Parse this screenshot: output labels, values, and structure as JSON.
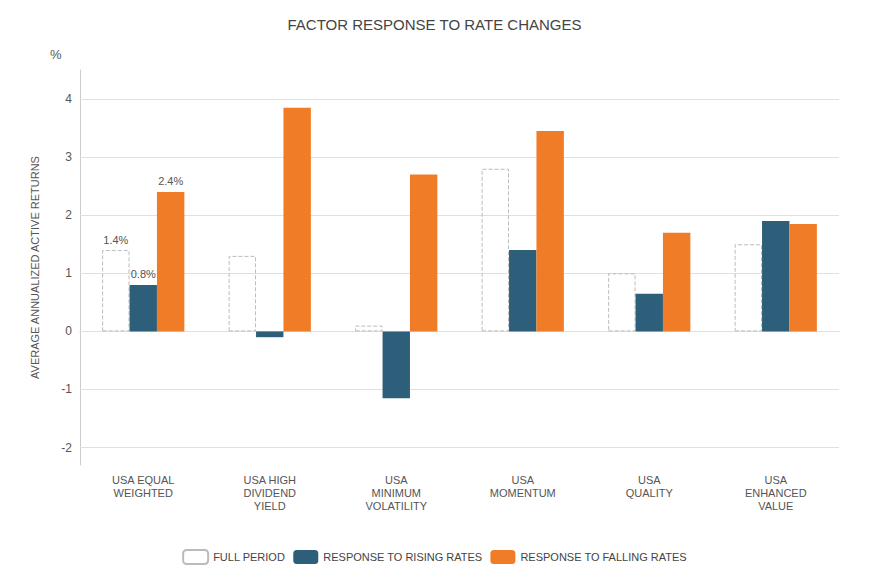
{
  "chart_data": {
    "type": "bar",
    "title": "FACTOR RESPONSE TO RATE CHANGES",
    "ylabel": "AVERAGE ANNUALIZED ACTIVE RETURNS",
    "ylabel_unit": "%",
    "categories": [
      "USA EQUAL\nWEIGHTED",
      "USA HIGH\nDIVIDEND\nYIELD",
      "USA\nMINIMUM\nVOLATILITY",
      "USA\nMOMENTUM",
      "USA\nQUALITY",
      "USA\nENHANCED\nVALUE"
    ],
    "series": [
      {
        "name": "FULL PERIOD",
        "color": "#bbbbbb",
        "line_style": "dashed",
        "values": [
          1.4,
          1.3,
          0.1,
          2.8,
          1.0,
          1.5
        ]
      },
      {
        "name": "RESPONSE TO RISING RATES",
        "color": "#2e5f7a",
        "values": [
          0.8,
          -0.1,
          -1.15,
          1.4,
          0.65,
          1.9
        ]
      },
      {
        "name": "RESPONSE TO FALLING RATES",
        "color": "#f07c28",
        "values": [
          2.4,
          3.85,
          2.7,
          3.45,
          1.7,
          1.85
        ]
      }
    ],
    "annotations": [
      {
        "text": "1.4%",
        "series": "FULL PERIOD",
        "category": "USA EQUAL\nWEIGHTED"
      },
      {
        "text": "0.8%",
        "series": "RESPONSE TO RISING RATES",
        "category": "USA EQUAL\nWEIGHTED"
      },
      {
        "text": "2.4%",
        "series": "RESPONSE TO FALLING RATES",
        "category": "USA EQUAL\nWEIGHTED"
      }
    ],
    "ylim": [
      -2.3,
      4.5
    ],
    "yticks": [
      -2,
      -1,
      0,
      1,
      2,
      3,
      4
    ],
    "grid": true,
    "legend": "bottom"
  }
}
